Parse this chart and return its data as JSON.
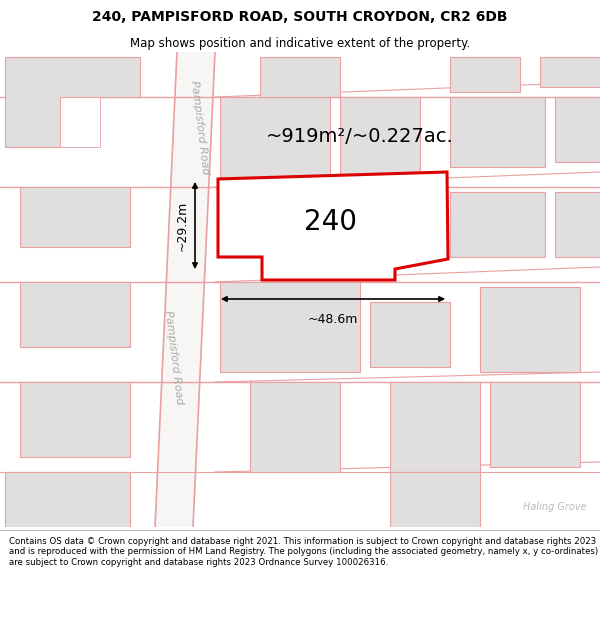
{
  "title": "240, PAMPISFORD ROAD, SOUTH CROYDON, CR2 6DB",
  "subtitle": "Map shows position and indicative extent of the property.",
  "footer": "Contains OS data © Crown copyright and database right 2021. This information is subject to Crown copyright and database rights 2023 and is reproduced with the permission of HM Land Registry. The polygons (including the associated geometry, namely x, y co-ordinates) are subject to Crown copyright and database rights 2023 Ordnance Survey 100026316.",
  "area_label": "~919m²/~0.227ac.",
  "property_number": "240",
  "dim_width": "~48.6m",
  "dim_height": "~29.2m",
  "road_label_upper": "Pampisford Road",
  "road_label_lower": "Pampisford Road",
  "haling_label": "Haling Grove",
  "map_bg": "#ffffff",
  "building_fill": "#e0dede",
  "building_stroke": "#e8a0a0",
  "road_color": "#e8a0a0",
  "highlight_fill": "#ffffff",
  "highlight_stroke": "#dd0000",
  "figsize": [
    6.0,
    6.25
  ],
  "dpi": 100,
  "title_fs": 10,
  "subtitle_fs": 8.5,
  "area_fs": 14,
  "num_fs": 20,
  "dim_fs": 9,
  "road_fs": 8
}
